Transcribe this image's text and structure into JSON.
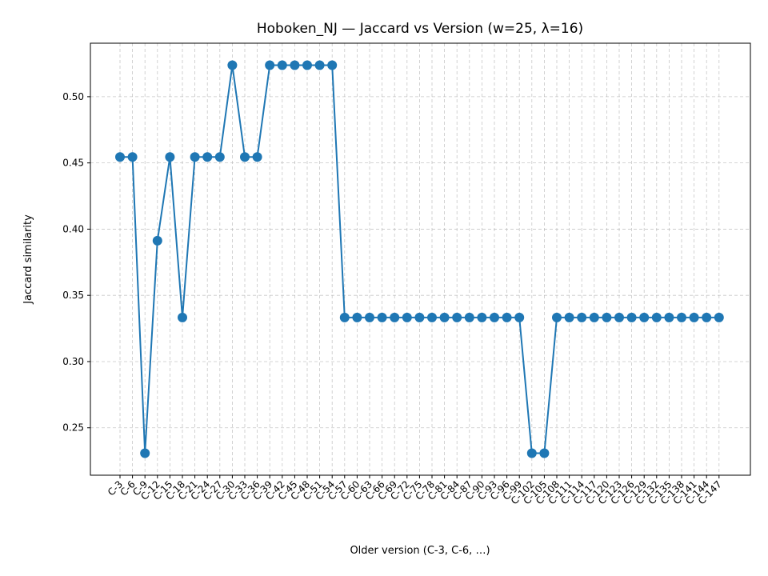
{
  "chart_data": {
    "type": "line",
    "title": "Hoboken_NJ — Jaccard vs Version (w=25, λ=16)",
    "xlabel": "Older version (C-3, C-6, …)",
    "ylabel": "Jaccard similarity",
    "categories": [
      "C-3",
      "C-6",
      "C-9",
      "C-12",
      "C-15",
      "C-18",
      "C-21",
      "C-24",
      "C-27",
      "C-30",
      "C-33",
      "C-36",
      "C-39",
      "C-42",
      "C-45",
      "C-48",
      "C-51",
      "C-54",
      "C-57",
      "C-60",
      "C-63",
      "C-66",
      "C-69",
      "C-72",
      "C-75",
      "C-78",
      "C-81",
      "C-84",
      "C-87",
      "C-90",
      "C-93",
      "C-96",
      "C-99",
      "C-102",
      "C-105",
      "C-108",
      "C-111",
      "C-114",
      "C-117",
      "C-120",
      "C-123",
      "C-126",
      "C-129",
      "C-132",
      "C-135",
      "C-138",
      "C-141",
      "C-144",
      "C-147"
    ],
    "series": [
      {
        "values": [
          0.4545,
          0.4545,
          0.2308,
          0.3913,
          0.4545,
          0.3333,
          0.4545,
          0.4545,
          0.4545,
          0.5238,
          0.4545,
          0.4545,
          0.5238,
          0.5238,
          0.5238,
          0.5238,
          0.5238,
          0.5238,
          0.3333,
          0.3333,
          0.3333,
          0.3333,
          0.3333,
          0.3333,
          0.3333,
          0.3333,
          0.3333,
          0.3333,
          0.3333,
          0.3333,
          0.3333,
          0.3333,
          0.3333,
          0.2308,
          0.2308,
          0.3333,
          0.3333,
          0.3333,
          0.3333,
          0.3333,
          0.3333,
          0.3333,
          0.3333,
          0.3333,
          0.3333,
          0.3333,
          0.3333,
          0.3333,
          0.3333
        ],
        "color": "#1f77b4"
      }
    ],
    "yticks": [
      "0.25",
      "0.30",
      "0.35",
      "0.40",
      "0.45",
      "0.50"
    ],
    "ylim": [
      0.2142,
      0.5404
    ],
    "grid": true,
    "legend": "none"
  }
}
